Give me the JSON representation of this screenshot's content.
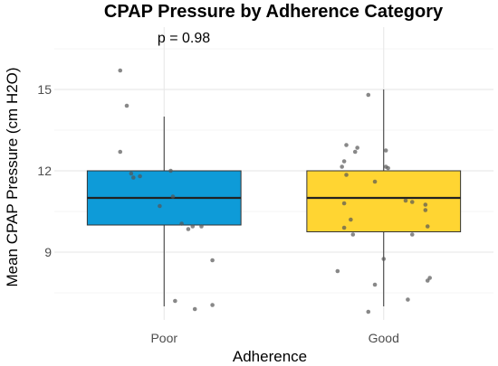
{
  "chart_data": {
    "type": "box",
    "title": "CPAP Pressure by Adherence Category",
    "xlabel": "Adherence",
    "ylabel": "Mean CPAP Pressure (cm H2O)",
    "annotation": "p = 0.98",
    "ylim": [
      6.5,
      17.3
    ],
    "yticks": [
      9,
      12,
      15
    ],
    "grid": true,
    "categories": [
      "Poor",
      "Good"
    ],
    "boxes": [
      {
        "name": "Poor",
        "color": "#0E9BD8",
        "whisker_low": 7.0,
        "q1": 10.0,
        "median": 11.0,
        "q3": 12.0,
        "whisker_high": 14.0,
        "points": [
          {
            "x": -0.2,
            "y": 15.7
          },
          {
            "x": -0.17,
            "y": 14.4
          },
          {
            "x": -0.2,
            "y": 12.7
          },
          {
            "x": -0.15,
            "y": 11.9
          },
          {
            "x": -0.11,
            "y": 11.8
          },
          {
            "x": -0.14,
            "y": 11.75
          },
          {
            "x": 0.03,
            "y": 12.0
          },
          {
            "x": 0.04,
            "y": 11.05
          },
          {
            "x": -0.02,
            "y": 10.7
          },
          {
            "x": 0.08,
            "y": 10.05
          },
          {
            "x": 0.13,
            "y": 9.95
          },
          {
            "x": 0.17,
            "y": 9.95
          },
          {
            "x": 0.11,
            "y": 9.85
          },
          {
            "x": 0.22,
            "y": 8.7
          },
          {
            "x": 0.05,
            "y": 7.2
          },
          {
            "x": 0.14,
            "y": 6.9
          },
          {
            "x": 0.22,
            "y": 7.05
          }
        ]
      },
      {
        "name": "Good",
        "color": "#FFD532",
        "whisker_low": 7.0,
        "q1": 9.75,
        "median": 11.0,
        "q3": 12.0,
        "whisker_high": 15.0,
        "points": [
          {
            "x": -0.07,
            "y": 14.8
          },
          {
            "x": -0.17,
            "y": 12.95
          },
          {
            "x": -0.13,
            "y": 12.7
          },
          {
            "x": -0.12,
            "y": 12.85
          },
          {
            "x": 0.01,
            "y": 12.75
          },
          {
            "x": -0.18,
            "y": 12.35
          },
          {
            "x": -0.19,
            "y": 12.15
          },
          {
            "x": 0.01,
            "y": 12.15
          },
          {
            "x": 0.02,
            "y": 12.1
          },
          {
            "x": -0.17,
            "y": 11.85
          },
          {
            "x": -0.04,
            "y": 11.6
          },
          {
            "x": 0.1,
            "y": 10.9
          },
          {
            "x": 0.13,
            "y": 10.85
          },
          {
            "x": 0.19,
            "y": 10.75
          },
          {
            "x": 0.19,
            "y": 10.55
          },
          {
            "x": -0.18,
            "y": 10.8
          },
          {
            "x": -0.15,
            "y": 10.2
          },
          {
            "x": -0.18,
            "y": 9.9
          },
          {
            "x": 0.2,
            "y": 9.95
          },
          {
            "x": -0.14,
            "y": 9.65
          },
          {
            "x": 0.13,
            "y": 9.65
          },
          {
            "x": 0.0,
            "y": 8.75
          },
          {
            "x": -0.21,
            "y": 8.3
          },
          {
            "x": 0.21,
            "y": 8.05
          },
          {
            "x": 0.2,
            "y": 7.95
          },
          {
            "x": -0.04,
            "y": 7.8
          },
          {
            "x": 0.11,
            "y": 7.25
          },
          {
            "x": -0.07,
            "y": 6.8
          }
        ]
      }
    ]
  }
}
